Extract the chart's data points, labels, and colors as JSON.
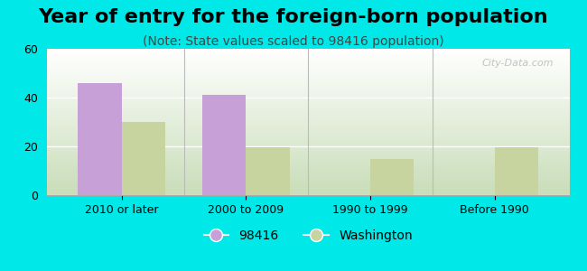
{
  "title": "Year of entry for the foreign-born population",
  "subtitle": "(Note: State values scaled to 98416 population)",
  "categories": [
    "2010 or later",
    "2000 to 2009",
    "1990 to 1999",
    "Before 1990"
  ],
  "series1_label": "98416",
  "series2_label": "Washington",
  "series1_values": [
    46,
    41,
    0,
    0
  ],
  "series2_values": [
    30,
    19.5,
    15,
    19.5
  ],
  "series1_color": "#c8a0d8",
  "series2_color": "#c8d4a0",
  "bar_width": 0.35,
  "ylim": [
    0,
    60
  ],
  "yticks": [
    0,
    20,
    40,
    60
  ],
  "background_color": "#00e8e8",
  "title_fontsize": 16,
  "subtitle_fontsize": 10,
  "tick_fontsize": 9,
  "legend_fontsize": 10,
  "watermark": "City-Data.com"
}
